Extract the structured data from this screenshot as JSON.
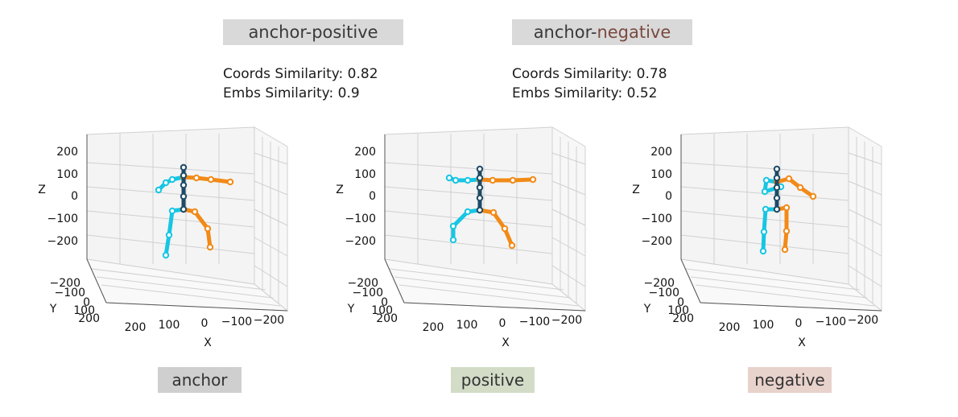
{
  "top_tags": {
    "anchor_positive": "anchor-positive",
    "anchor_negative_prefix": "anchor-",
    "anchor_negative_suffix": "negative"
  },
  "metrics": {
    "ap": {
      "coords": "Coords Similarity: 0.82",
      "embs": "Embs Similarity: 0.9"
    },
    "an": {
      "coords": "Coords Similarity: 0.78",
      "embs": "Embs Similarity: 0.52"
    }
  },
  "captions": {
    "anchor": "anchor",
    "positive": "positive",
    "negative": "negative"
  },
  "colors": {
    "tag_bg": "#d9d9d9",
    "anchor_bg": "#cfcfcf",
    "positive_bg": "#d2dcc7",
    "negative_bg": "#e8d2cc",
    "spine": "#1e4a66",
    "left_limbs": "#17c6e3",
    "right_limbs": "#f28a17"
  },
  "axes": {
    "z_label": "Z",
    "y_label": "Y",
    "x_label": "X",
    "z_ticks": [
      "200",
      "100",
      "0",
      "−100",
      "−200"
    ],
    "y_ticks": [
      "−200",
      "−100",
      "0",
      "100",
      "200"
    ],
    "x_ticks": [
      "200",
      "100",
      "0",
      "−100",
      "−200"
    ]
  }
}
